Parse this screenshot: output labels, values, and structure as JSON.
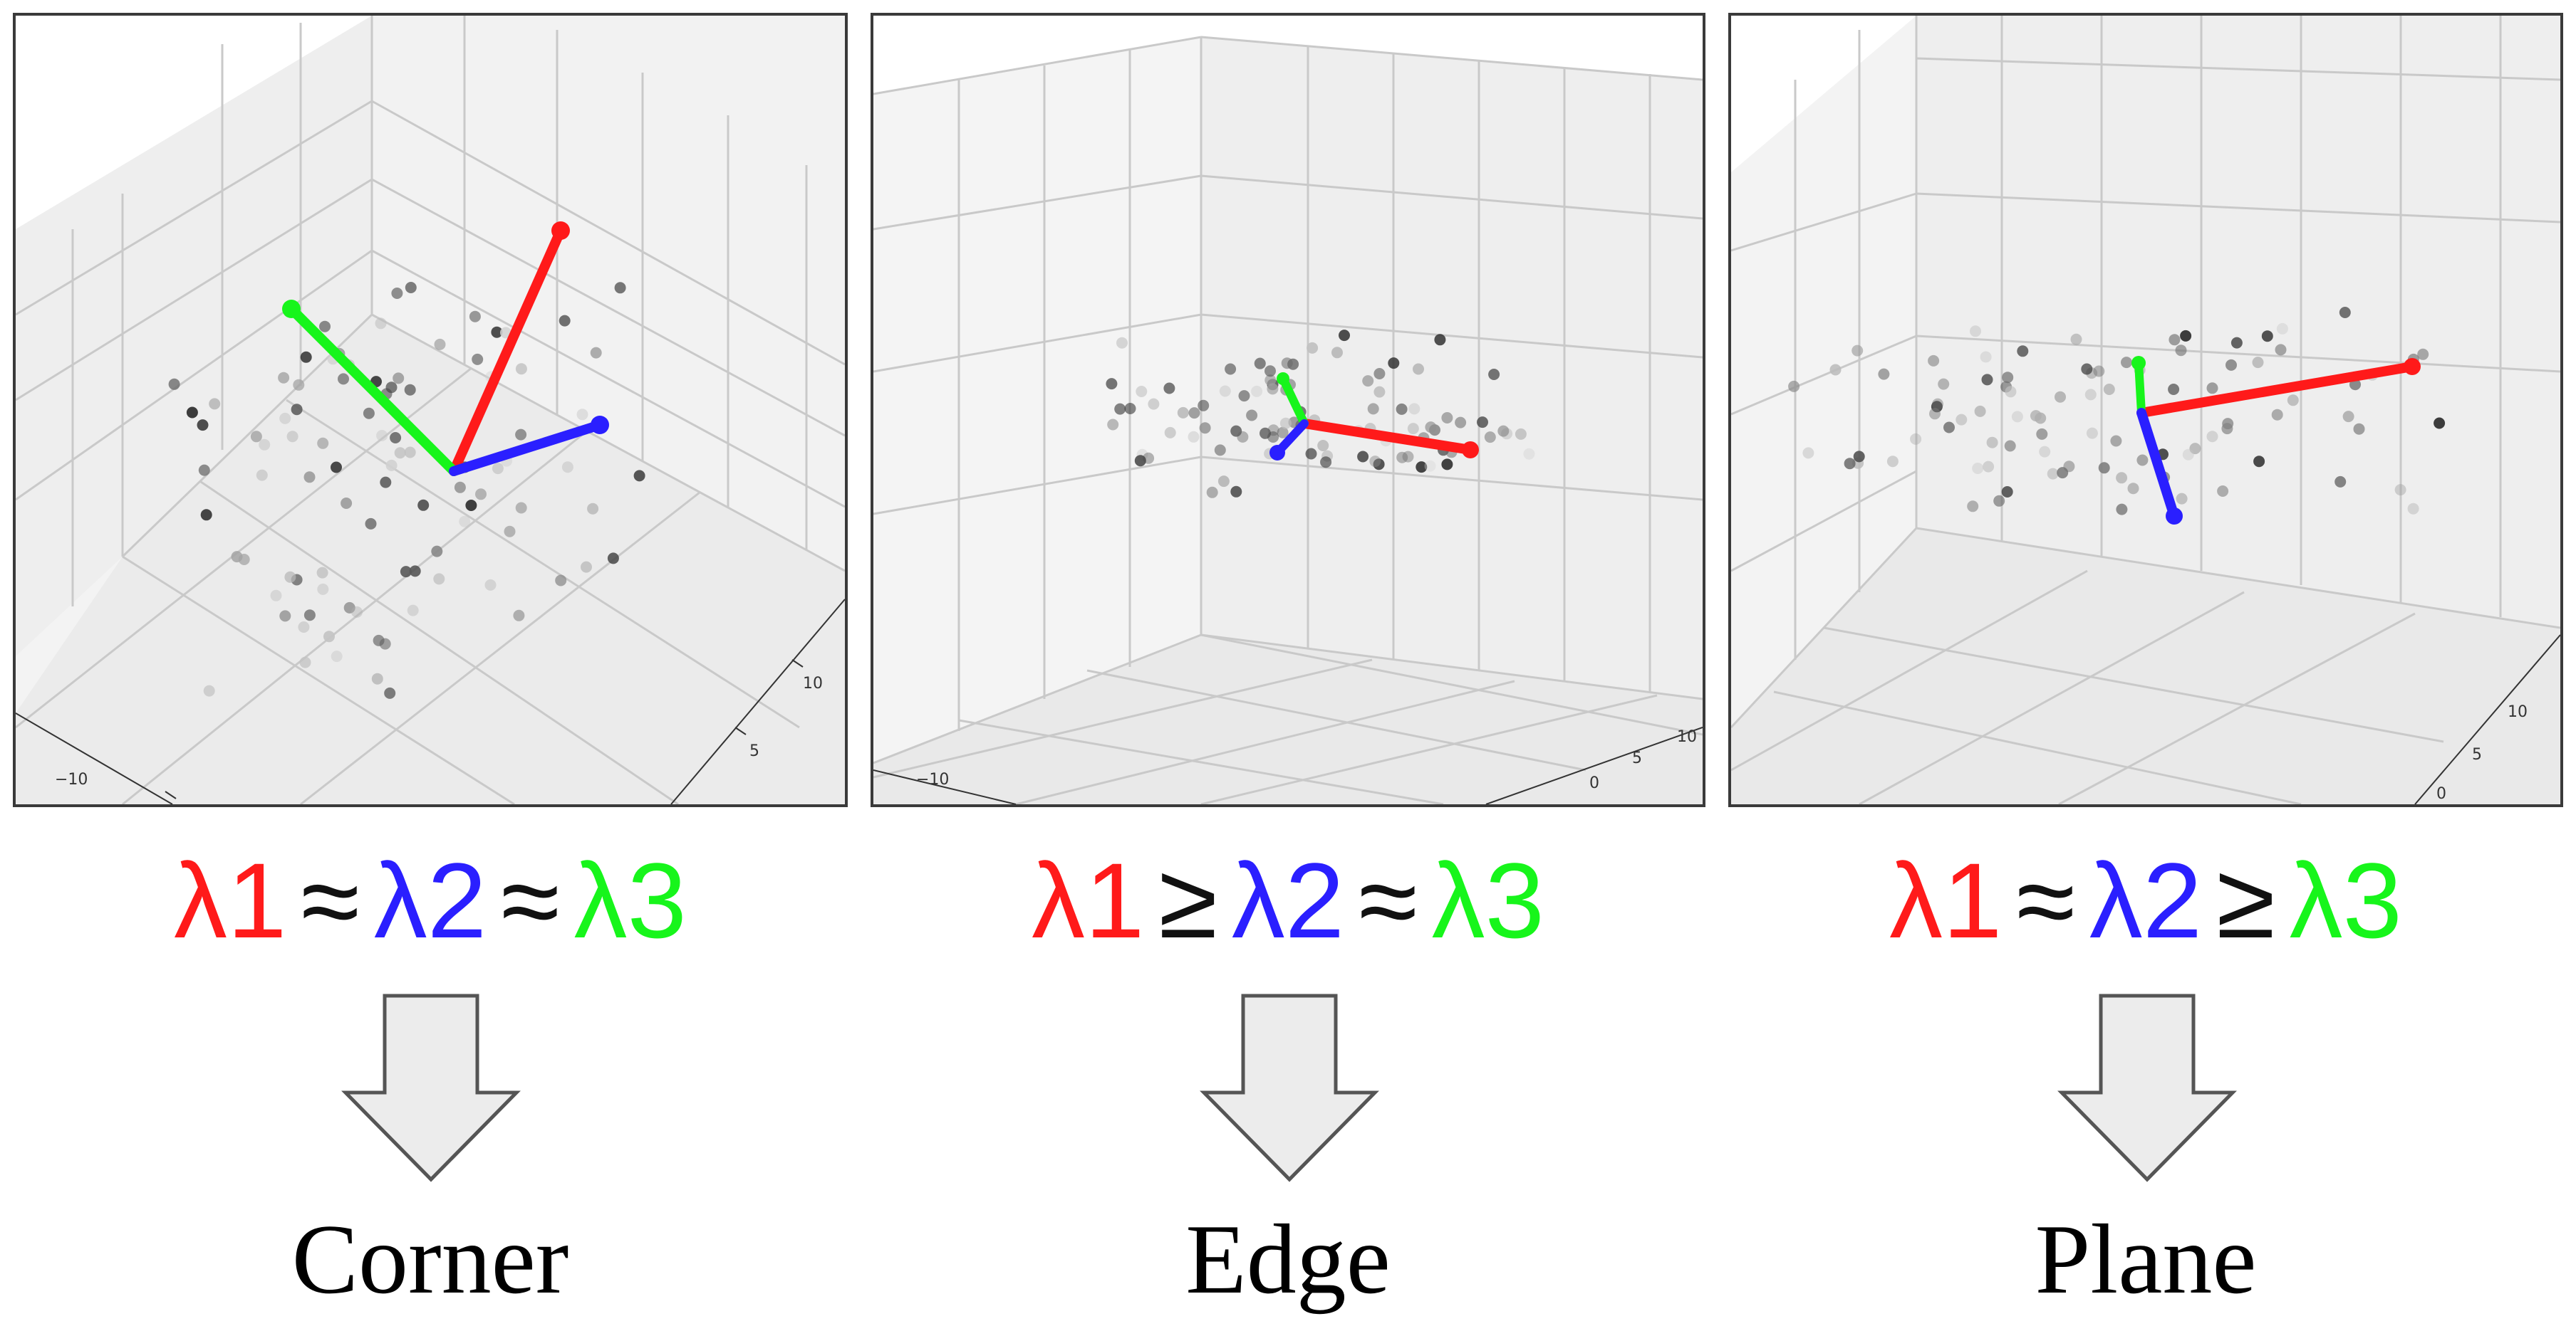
{
  "colors": {
    "lambda1": "#ff1a1a",
    "lambda2": "#2a1fff",
    "lambda3": "#17f51b",
    "operator": "#111111",
    "arrow_fill": "#ececec",
    "arrow_stroke": "#555555"
  },
  "panels": [
    {
      "name": "corner",
      "formula": {
        "l1": "λ1",
        "op1": "≈",
        "l2": "λ2",
        "op2": "≈",
        "l3": "λ3"
      },
      "label": "Corner",
      "ticks": [
        "−10",
        "5",
        "10"
      ]
    },
    {
      "name": "edge",
      "formula": {
        "l1": "λ1",
        "op1": "≥",
        "l2": "λ2",
        "op2": "≈",
        "l3": "λ3"
      },
      "label": "Edge",
      "ticks": [
        "−10",
        "0",
        "5",
        "10"
      ]
    },
    {
      "name": "plane",
      "formula": {
        "l1": "λ1",
        "op1": "≈",
        "l2": "λ2",
        "op2": "≥",
        "l3": "λ3"
      },
      "label": "Plane",
      "ticks": [
        "0",
        "5",
        "10"
      ]
    }
  ],
  "icons": {
    "down_arrow": "down-arrow-icon"
  }
}
